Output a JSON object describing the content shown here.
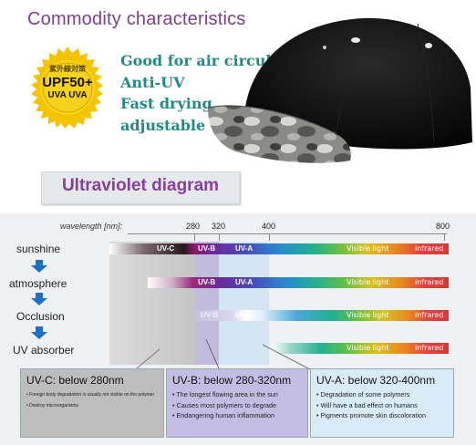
{
  "header": {
    "title": "Commodity characteristics"
  },
  "badge": {
    "cn_text": "紫外線対策",
    "main": "UPF50+",
    "sub": "UVA UVA"
  },
  "features": [
    "Good for air circulation",
    "Anti-UV",
    "Fast drying",
    "adjustable"
  ],
  "diagram": {
    "title": "Ultraviolet diagram",
    "wavelength_label": "wavelength",
    "wavelength_unit": "[nm]:",
    "ticks": [
      "280",
      "320",
      "400",
      "800"
    ],
    "rows": [
      {
        "label": "sunshine",
        "bands": [
          "UV-C",
          "UV-B",
          "UV-A",
          "Visible light",
          "infrared"
        ]
      },
      {
        "label": "atmosphere",
        "bands": [
          "UV-B",
          "UV-A",
          "Visible light",
          "infrared"
        ]
      },
      {
        "label": "Occlusion",
        "bands": [
          "UV-B",
          "UV-A",
          "Visible light",
          "infrared"
        ]
      },
      {
        "label": "UV absorber",
        "bands": [
          "Visible light",
          "infrared"
        ]
      }
    ],
    "arrow_color": "#1f6fc4"
  },
  "info": {
    "uvc": {
      "title": "UV-C: below 280nm",
      "items": [
        "Foreign body degradation is usually not visible on the polymer",
        "Destroy microorganisms"
      ]
    },
    "uvb": {
      "title": "UV-B: below 280-320nm",
      "items": [
        "The longest flowing area in the sun",
        "Causes most polymers to degrade",
        "Endangering human inflammation"
      ]
    },
    "uva": {
      "title": "UV-A: below 320-400nm",
      "items": [
        "Degradation of some polymers",
        "Will have a bad effect on humans",
        "Pigments promote skin discoloration"
      ]
    }
  },
  "colors": {
    "title": "#7b3f93",
    "features": "#1f8a86",
    "badge": "#f5c400"
  }
}
